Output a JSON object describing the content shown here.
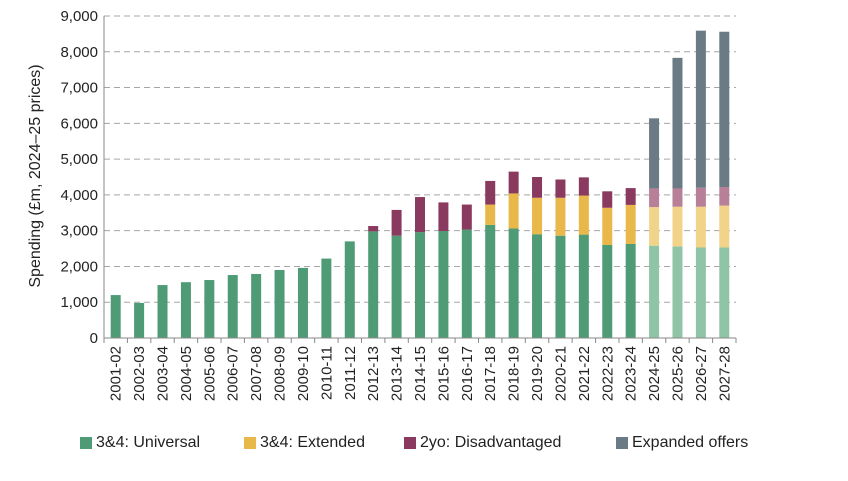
{
  "chart_data": {
    "type": "bar",
    "stacked": true,
    "title": "",
    "xlabel": "",
    "ylabel": "Spending (£m, 2024–25 prices)",
    "ylim": [
      0,
      9000
    ],
    "yticks": [
      0,
      1000,
      2000,
      3000,
      4000,
      5000,
      6000,
      7000,
      8000,
      9000
    ],
    "ytick_labels": [
      "0",
      "1,000",
      "2,000",
      "3,000",
      "4,000",
      "5,000",
      "6,000",
      "7,000",
      "8,000",
      "9,000"
    ],
    "grid": true,
    "legend_position": "bottom",
    "categories": [
      "2001-02",
      "2002-03",
      "2003-04",
      "2004-05",
      "2005-06",
      "2006-07",
      "2007-08",
      "2008-09",
      "2009-10",
      "2010-11",
      "2011-12",
      "2012-13",
      "2013-14",
      "2014-15",
      "2015-16",
      "2016-17",
      "2017-18",
      "2018-19",
      "2019-20",
      "2020-21",
      "2021-22",
      "2022-23",
      "2023-24",
      "2024-25",
      "2025-26",
      "2026-27",
      "2027-28"
    ],
    "projected_from": "2024-25",
    "series": [
      {
        "name": "3&4: Universal",
        "color": "#4e9b76",
        "projected_color": "#8fc5a6",
        "values": [
          1200,
          980,
          1480,
          1560,
          1620,
          1760,
          1790,
          1900,
          1960,
          2220,
          2700,
          2980,
          2860,
          2960,
          2990,
          3030,
          3160,
          3060,
          2900,
          2860,
          2890,
          2600,
          2630,
          2580,
          2560,
          2530,
          2530
        ]
      },
      {
        "name": "3&4: Extended",
        "color": "#e8b84b",
        "projected_color": "#f1d38a",
        "values": [
          0,
          0,
          0,
          0,
          0,
          0,
          0,
          0,
          0,
          0,
          0,
          0,
          0,
          0,
          0,
          0,
          570,
          980,
          1020,
          1060,
          1090,
          1040,
          1090,
          1080,
          1110,
          1140,
          1170
        ]
      },
      {
        "name": "2yo: Disadvantaged",
        "color": "#8a3a5e",
        "projected_color": "#b88098",
        "values": [
          0,
          0,
          0,
          0,
          0,
          0,
          0,
          0,
          0,
          0,
          0,
          150,
          720,
          980,
          800,
          700,
          660,
          610,
          580,
          510,
          510,
          460,
          470,
          520,
          510,
          530,
          520
        ]
      },
      {
        "name": "Expanded offers",
        "color": "#6b7b86",
        "projected_color": "#6b7b86",
        "values": [
          0,
          0,
          0,
          0,
          0,
          0,
          0,
          0,
          0,
          0,
          0,
          0,
          0,
          0,
          0,
          0,
          0,
          0,
          0,
          0,
          0,
          0,
          0,
          1960,
          3650,
          4390,
          4340
        ]
      }
    ]
  }
}
